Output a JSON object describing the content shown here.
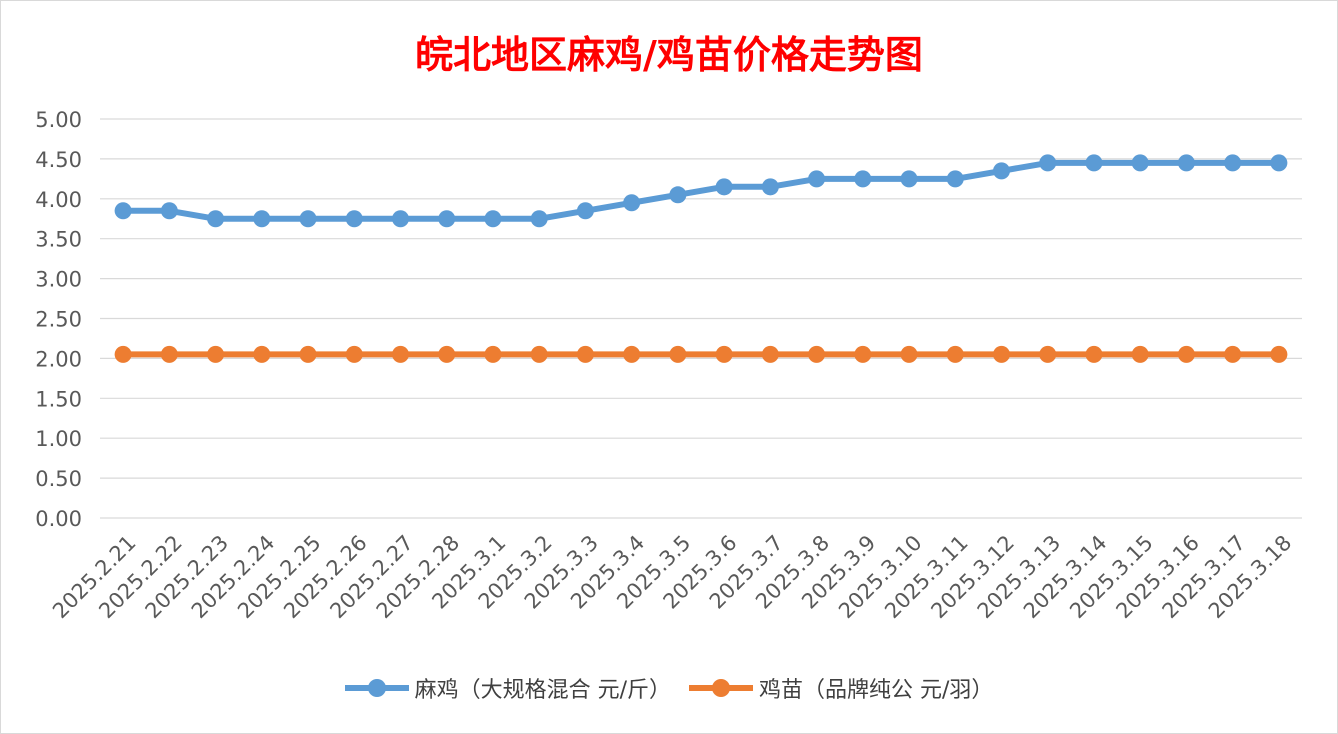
{
  "chart_data": {
    "type": "line",
    "title": "皖北地区麻鸡/鸡苗价格走势图",
    "categories": [
      "2025.2.21",
      "2025.2.22",
      "2025.2.23",
      "2025.2.24",
      "2025.2.25",
      "2025.2.26",
      "2025.2.27",
      "2025.2.28",
      "2025.3.1",
      "2025.3.2",
      "2025.3.3",
      "2025.3.4",
      "2025.3.5",
      "2025.3.6",
      "2025.3.7",
      "2025.3.8",
      "2025.3.9",
      "2025.3.10",
      "2025.3.11",
      "2025.3.12",
      "2025.3.13",
      "2025.3.14",
      "2025.3.15",
      "2025.3.16",
      "2025.3.17",
      "2025.3.18"
    ],
    "series": [
      {
        "name": "麻鸡（大规格混合 元/斤）",
        "color": "#5b9bd5",
        "values": [
          3.85,
          3.85,
          3.75,
          3.75,
          3.75,
          3.75,
          3.75,
          3.75,
          3.75,
          3.75,
          3.85,
          3.95,
          4.05,
          4.15,
          4.15,
          4.25,
          4.25,
          4.25,
          4.25,
          4.35,
          4.45,
          4.45,
          4.45,
          4.45,
          4.45,
          4.45
        ]
      },
      {
        "name": "鸡苗（品牌纯公 元/羽）",
        "color": "#ed7d31",
        "values": [
          2.05,
          2.05,
          2.05,
          2.05,
          2.05,
          2.05,
          2.05,
          2.05,
          2.05,
          2.05,
          2.05,
          2.05,
          2.05,
          2.05,
          2.05,
          2.05,
          2.05,
          2.05,
          2.05,
          2.05,
          2.05,
          2.05,
          2.05,
          2.05,
          2.05,
          2.05
        ]
      }
    ],
    "y_ticks": [
      "0.00",
      "0.50",
      "1.00",
      "1.50",
      "2.00",
      "2.50",
      "3.00",
      "3.50",
      "4.00",
      "4.50",
      "5.00"
    ],
    "ylim": [
      0,
      5
    ],
    "grid": true,
    "legend": "bottom",
    "text_color": "#595959",
    "grid_color": "#d9d9d9",
    "title_color": "#ff0000"
  }
}
